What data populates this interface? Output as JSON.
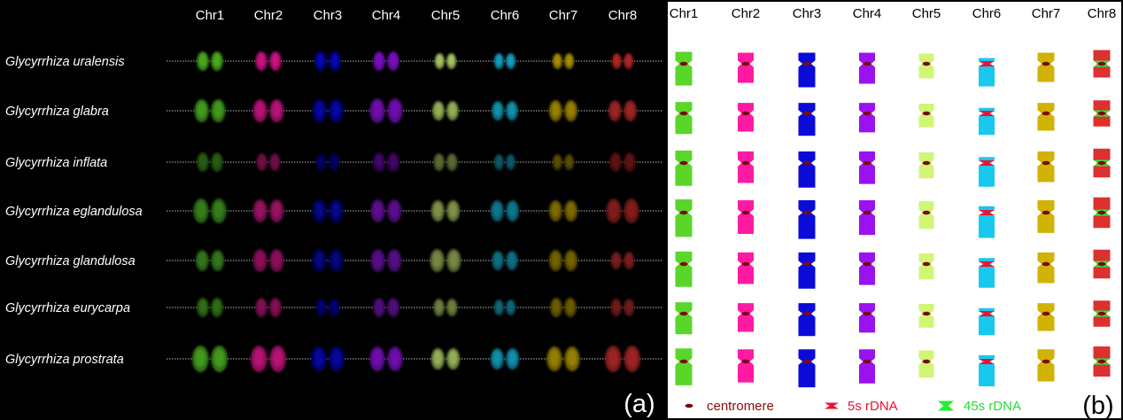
{
  "chromosomes": [
    "Chr1",
    "Chr2",
    "Chr3",
    "Chr4",
    "Chr5",
    "Chr6",
    "Chr7",
    "Chr8"
  ],
  "species": [
    "Glycyrrhiza uralensis",
    "Glycyrrhiza glabra",
    "Glycyrrhiza inflata",
    "Glycyrrhiza eglandulosa",
    "Glycyrrhiza glandulosa",
    "Glycyrrhiza eurycarpa",
    "Glycyrrhiza prostrata"
  ],
  "colors": [
    "#5ad62a",
    "#ff1aa3",
    "#0a0ad9",
    "#9a12f0",
    "#d2f576",
    "#18c8ee",
    "#d1b206",
    "#dd3030"
  ],
  "centromere_color": "#7a0a0a",
  "rdna_5s_color": "#ee1133",
  "rdna_45s_color": "#22ee33",
  "rdna_markers": {
    "Chr6": "5s rDNA",
    "Chr8": "45s rDNA"
  },
  "legend": {
    "centromere": "centromere",
    "rdna_5s": "5s rDNA",
    "rdna_45s": "45s rDNA"
  },
  "panel_labels": {
    "a": "(a)",
    "b": "(b)"
  }
}
